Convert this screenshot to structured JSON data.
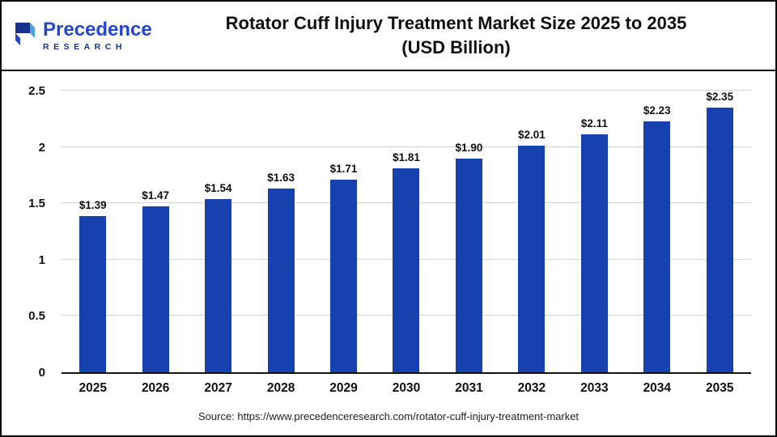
{
  "logo": {
    "name": "Precedence",
    "subname": "RESEARCH"
  },
  "header": {
    "title_line1": "Rotator Cuff Injury Treatment Market Size 2025 to 2035",
    "title_line2": "(USD Billion)"
  },
  "footer": {
    "source": "Source: https://www.precedenceresearch.com/rotator-cuff-injury-treatment-market"
  },
  "colors": {
    "bar": "#1641ae",
    "logo_blue": "#2547cf",
    "logo_navy": "#16328c",
    "gridline": "#d4d4d4"
  },
  "chart_data": {
    "type": "bar",
    "title": "Rotator Cuff Injury Treatment Market Size 2025 to 2035 (USD Billion)",
    "categories": [
      "2025",
      "2026",
      "2027",
      "2028",
      "2029",
      "2030",
      "2031",
      "2032",
      "2033",
      "2034",
      "2035"
    ],
    "values": [
      1.39,
      1.47,
      1.54,
      1.63,
      1.71,
      1.81,
      1.9,
      2.01,
      2.11,
      2.23,
      2.35
    ],
    "value_labels": [
      "$1.39",
      "$1.47",
      "$1.54",
      "$1.63",
      "$1.71",
      "$1.81",
      "$1.90",
      "$2.01",
      "$2.11",
      "$2.23",
      "$2.35"
    ],
    "xlabel": "",
    "ylabel": "",
    "ylim": [
      0,
      2.5
    ],
    "yticks": [
      0,
      0.5,
      1,
      1.5,
      2,
      2.5
    ],
    "ytick_labels": [
      "0",
      "0.5",
      "1",
      "1.5",
      "2",
      "2.5"
    ],
    "bar_color": "#1641ae",
    "grid": true,
    "legend_position": "none"
  }
}
